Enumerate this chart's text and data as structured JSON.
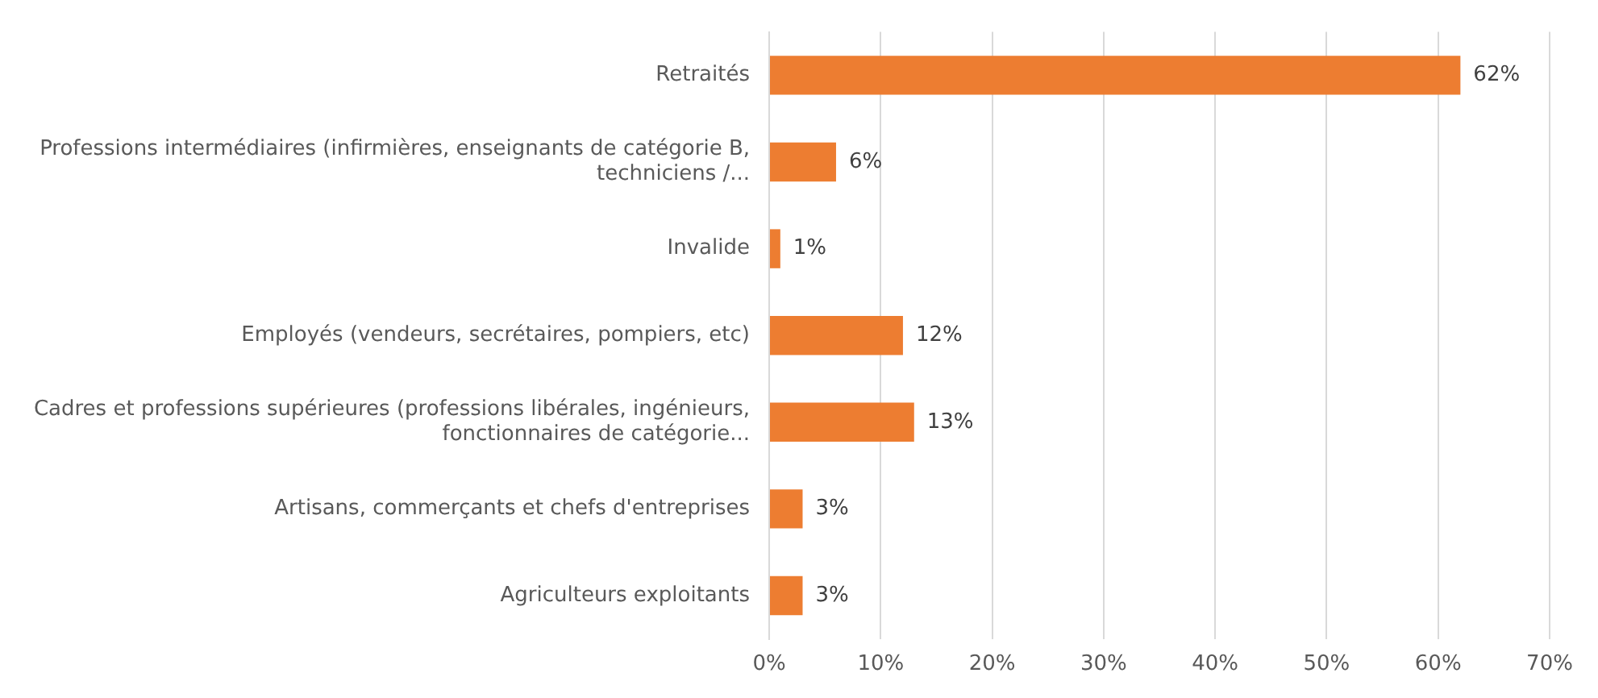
{
  "chart_data": {
    "type": "bar",
    "orientation": "horizontal",
    "categories": [
      "Retraités",
      "Professions intermédiaires (infirmières, enseignants de catégorie B, techniciens /...",
      "Invalide",
      "Employés (vendeurs, secrétaires, pompiers, etc)",
      "Cadres et professions supérieures (professions libérales, ingénieurs, fonctionnaires de catégorie...",
      "Artisans, commerçants et chefs d'entreprises",
      "Agriculteurs exploitants"
    ],
    "values": [
      62,
      6,
      1,
      12,
      13,
      3,
      3
    ],
    "value_labels": [
      "62%",
      "6%",
      "1%",
      "12%",
      "13%",
      "3%",
      "3%"
    ],
    "color": "#ed7d31",
    "xlim": [
      0,
      70
    ],
    "xticks": [
      {
        "value": 0,
        "label": "0%"
      },
      {
        "value": 10,
        "label": "10%"
      },
      {
        "value": 20,
        "label": "20%"
      },
      {
        "value": 30,
        "label": "30%"
      },
      {
        "value": 40,
        "label": "40%"
      },
      {
        "value": 50,
        "label": "50%"
      },
      {
        "value": 60,
        "label": "60%"
      },
      {
        "value": 70,
        "label": "70%"
      }
    ],
    "grid": "x"
  }
}
